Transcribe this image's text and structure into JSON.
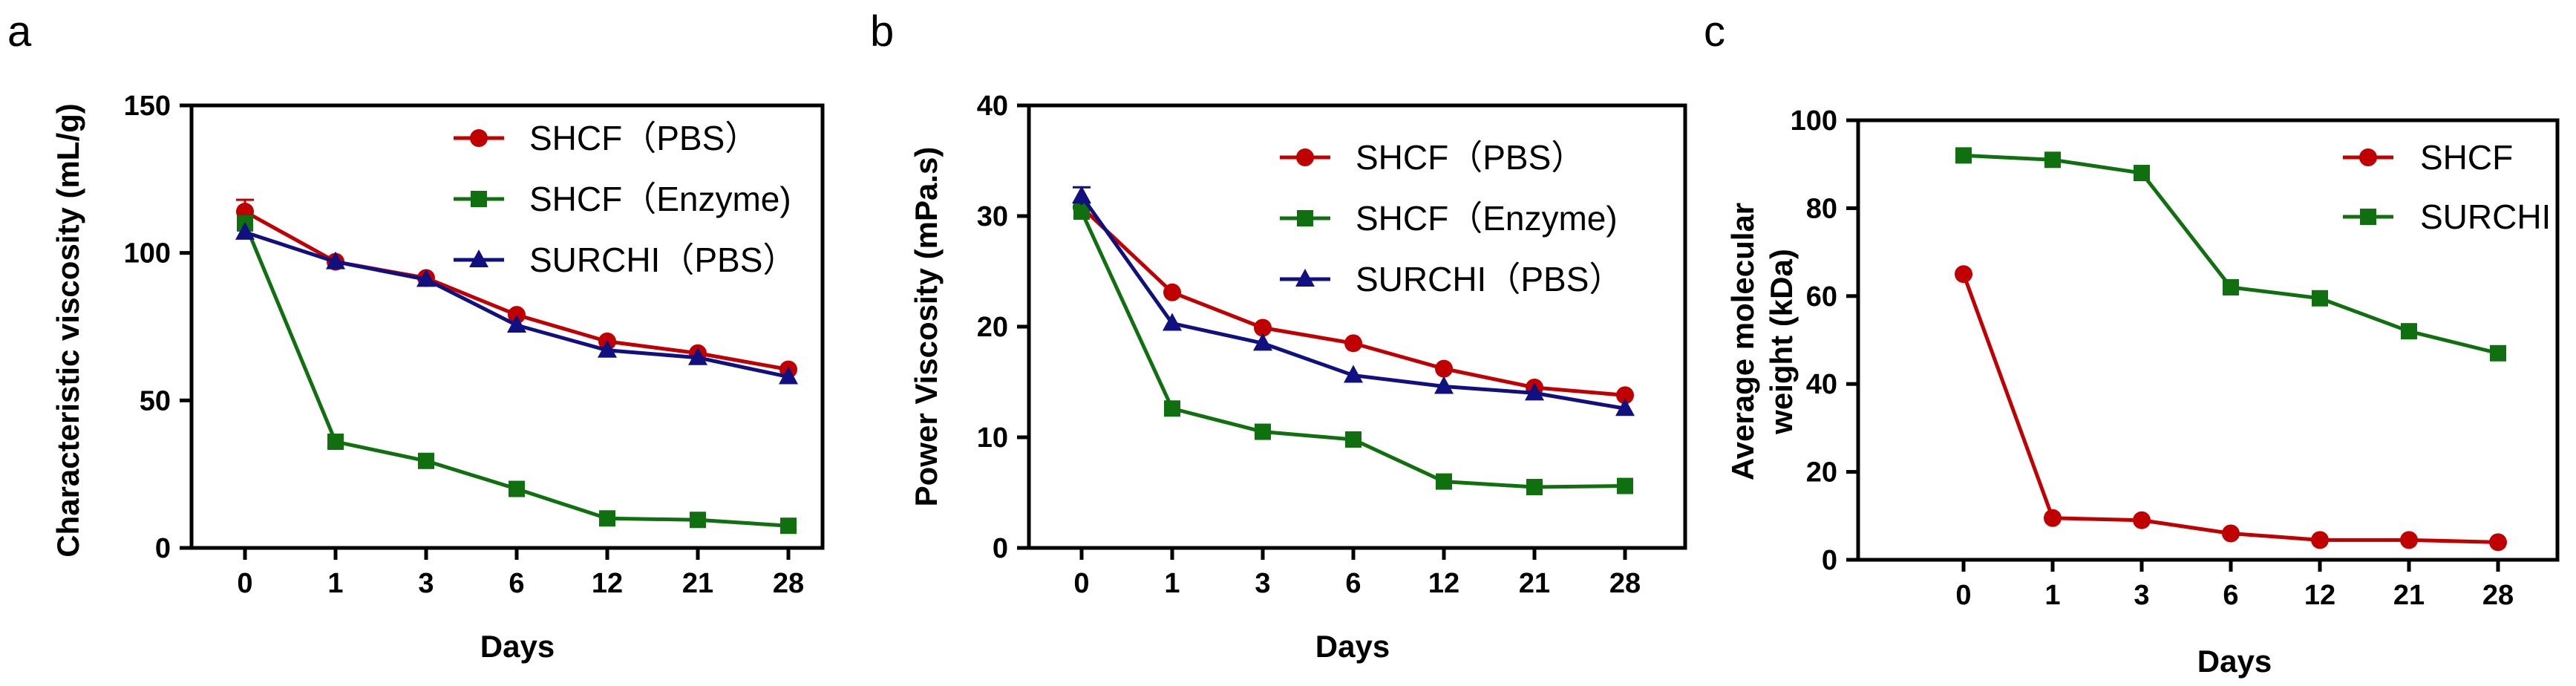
{
  "colors": {
    "red": "#c00000",
    "green": "#107010",
    "navy": "#101080"
  },
  "chart_data": [
    {
      "panel_label": "a",
      "type": "line",
      "xlabel": "Days",
      "ylabel": "Characteristic viscosity (mL/g)",
      "categories": [
        "0",
        "1",
        "3",
        "6",
        "12",
        "21",
        "28"
      ],
      "ylim": [
        0,
        150
      ],
      "yticks": [
        0,
        50,
        100,
        150
      ],
      "series": [
        {
          "name": "SHCF（PBS）",
          "color": "#c00000",
          "marker": "circle",
          "values": [
            114,
            97,
            91.5,
            79,
            70,
            66,
            60.5
          ],
          "errors": [
            4,
            0,
            0,
            0,
            0,
            0,
            0
          ]
        },
        {
          "name": "SHCF（Enzyme)",
          "color": "#107010",
          "marker": "square",
          "values": [
            110,
            36,
            29.5,
            20,
            10,
            9.5,
            7.5
          ],
          "errors": [
            0,
            0,
            0,
            0,
            0,
            0,
            0
          ]
        },
        {
          "name": "SURCHI（PBS）",
          "color": "#101080",
          "marker": "triangle",
          "values": [
            107,
            97,
            91,
            75.5,
            67,
            64.5,
            58
          ],
          "errors": [
            0,
            0,
            0,
            0,
            0,
            0,
            0
          ]
        }
      ]
    },
    {
      "panel_label": "b",
      "type": "line",
      "xlabel": "Days",
      "ylabel": "Power Viscosity (mPa.s)",
      "categories": [
        "0",
        "1",
        "3",
        "6",
        "12",
        "21",
        "28"
      ],
      "ylim": [
        0,
        40
      ],
      "yticks": [
        0,
        10,
        20,
        30,
        40
      ],
      "series": [
        {
          "name": "SHCF（PBS）",
          "color": "#c00000",
          "marker": "circle",
          "values": [
            30.8,
            23.1,
            19.9,
            18.5,
            16.2,
            14.5,
            13.8
          ],
          "errors": [
            0,
            0,
            0,
            0,
            0,
            0,
            0
          ]
        },
        {
          "name": "SHCF（Enzyme)",
          "color": "#107010",
          "marker": "square",
          "values": [
            30.4,
            12.6,
            10.5,
            9.8,
            6.0,
            5.5,
            5.6
          ],
          "errors": [
            0,
            0,
            0,
            0,
            0,
            0,
            0
          ]
        },
        {
          "name": "SURCHI（PBS）",
          "color": "#101080",
          "marker": "triangle",
          "values": [
            31.8,
            20.3,
            18.5,
            15.6,
            14.6,
            14.0,
            12.6
          ],
          "errors": [
            0.8,
            0,
            0,
            0,
            0,
            0,
            0
          ]
        }
      ]
    },
    {
      "panel_label": "c",
      "type": "line",
      "xlabel": "Days",
      "ylabel_lines": [
        "Average molecular",
        "weight (kDa)"
      ],
      "categories": [
        "0",
        "1",
        "3",
        "6",
        "12",
        "21",
        "28"
      ],
      "ylim": [
        0,
        100
      ],
      "yticks": [
        0,
        20,
        40,
        60,
        80,
        100
      ],
      "series": [
        {
          "name": "SHCF",
          "color": "#c00000",
          "marker": "circle",
          "values": [
            65,
            9.5,
            9,
            6,
            4.5,
            4.5,
            4
          ],
          "errors": [
            0,
            0,
            0,
            0,
            0,
            0,
            0
          ]
        },
        {
          "name": "SURCHI",
          "color": "#107010",
          "marker": "square",
          "values": [
            92,
            91,
            88,
            62,
            59.5,
            52,
            47
          ],
          "errors": [
            0,
            0,
            0,
            0,
            0,
            0,
            0
          ]
        }
      ]
    }
  ]
}
